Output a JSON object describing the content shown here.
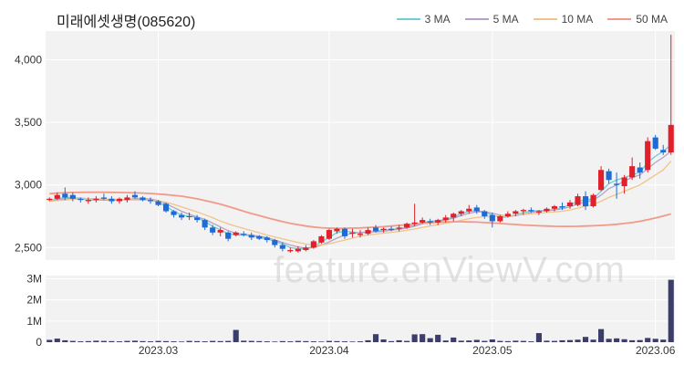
{
  "title": "미래에셋생명(085620)",
  "watermark": "feature.enViewV.com",
  "legend": [
    {
      "label": "3 MA",
      "color": "#6fcfd6"
    },
    {
      "label": "5 MA",
      "color": "#b7a1c9"
    },
    {
      "label": "10 MA",
      "color": "#f0c48a"
    },
    {
      "label": "50 MA",
      "color": "#f2998a"
    }
  ],
  "colors": {
    "up": "#e0202a",
    "down": "#1e6bd6",
    "volume": "#3d3d6b",
    "grid": "#e9e9e9",
    "panel": "#f2f2f2"
  },
  "chart_data": {
    "type": "candlestick",
    "price_axis": {
      "ticks": [
        2500,
        3000,
        3500,
        4000
      ],
      "tick_labels": [
        "2,500",
        "3,000",
        "3,500",
        "4,000"
      ],
      "ylim": [
        2400,
        4230
      ]
    },
    "volume_axis": {
      "ticks": [
        0,
        1000000,
        2000000,
        3000000
      ],
      "tick_labels": [
        "0",
        "1M",
        "2M",
        "3M"
      ],
      "ylim": [
        0,
        3150000
      ]
    },
    "x_labels": [
      {
        "label": "2023.03",
        "index": 14
      },
      {
        "label": "2023.04",
        "index": 36
      },
      {
        "label": "2023.05",
        "index": 57
      },
      {
        "label": "2023.06",
        "index": 78
      }
    ],
    "ohlc": [
      [
        2880,
        2900,
        2870,
        2890
      ],
      [
        2890,
        2940,
        2880,
        2920
      ],
      [
        2930,
        2980,
        2880,
        2900
      ],
      [
        2920,
        2940,
        2870,
        2890
      ],
      [
        2890,
        2900,
        2860,
        2880
      ],
      [
        2870,
        2900,
        2850,
        2880
      ],
      [
        2880,
        2910,
        2860,
        2890
      ],
      [
        2900,
        2930,
        2880,
        2890
      ],
      [
        2890,
        2910,
        2850,
        2870
      ],
      [
        2870,
        2900,
        2850,
        2890
      ],
      [
        2880,
        2920,
        2860,
        2900
      ],
      [
        2920,
        2950,
        2890,
        2900
      ],
      [
        2900,
        2910,
        2870,
        2880
      ],
      [
        2880,
        2900,
        2850,
        2870
      ],
      [
        2870,
        2880,
        2830,
        2840
      ],
      [
        2850,
        2860,
        2780,
        2790
      ],
      [
        2790,
        2800,
        2740,
        2760
      ],
      [
        2760,
        2780,
        2720,
        2740
      ],
      [
        2750,
        2780,
        2720,
        2750
      ],
      [
        2740,
        2760,
        2700,
        2720
      ],
      [
        2720,
        2730,
        2640,
        2660
      ],
      [
        2660,
        2680,
        2600,
        2620
      ],
      [
        2620,
        2660,
        2590,
        2640
      ],
      [
        2620,
        2630,
        2550,
        2570
      ],
      [
        2600,
        2630,
        2590,
        2620
      ],
      [
        2610,
        2630,
        2590,
        2600
      ],
      [
        2600,
        2620,
        2560,
        2580
      ],
      [
        2590,
        2600,
        2560,
        2570
      ],
      [
        2580,
        2590,
        2540,
        2560
      ],
      [
        2560,
        2570,
        2500,
        2520
      ],
      [
        2520,
        2540,
        2470,
        2490
      ],
      [
        2470,
        2500,
        2460,
        2480
      ],
      [
        2470,
        2510,
        2460,
        2490
      ],
      [
        2480,
        2520,
        2470,
        2500
      ],
      [
        2500,
        2560,
        2490,
        2550
      ],
      [
        2540,
        2600,
        2530,
        2590
      ],
      [
        2570,
        2650,
        2560,
        2640
      ],
      [
        2630,
        2660,
        2610,
        2650
      ],
      [
        2650,
        2660,
        2570,
        2590
      ],
      [
        2610,
        2650,
        2580,
        2620
      ],
      [
        2600,
        2640,
        2580,
        2610
      ],
      [
        2610,
        2660,
        2600,
        2640
      ],
      [
        2660,
        2680,
        2620,
        2630
      ],
      [
        2640,
        2660,
        2620,
        2650
      ],
      [
        2650,
        2670,
        2630,
        2640
      ],
      [
        2650,
        2680,
        2630,
        2660
      ],
      [
        2660,
        2700,
        2650,
        2690
      ],
      [
        2690,
        2850,
        2670,
        2700
      ],
      [
        2700,
        2740,
        2690,
        2720
      ],
      [
        2710,
        2730,
        2680,
        2700
      ],
      [
        2700,
        2730,
        2680,
        2720
      ],
      [
        2720,
        2760,
        2700,
        2740
      ],
      [
        2740,
        2780,
        2710,
        2770
      ],
      [
        2770,
        2800,
        2750,
        2790
      ],
      [
        2790,
        2840,
        2770,
        2810
      ],
      [
        2820,
        2840,
        2770,
        2790
      ],
      [
        2790,
        2800,
        2730,
        2750
      ],
      [
        2760,
        2780,
        2660,
        2710
      ],
      [
        2710,
        2760,
        2700,
        2750
      ],
      [
        2750,
        2790,
        2740,
        2770
      ],
      [
        2770,
        2800,
        2750,
        2790
      ],
      [
        2790,
        2810,
        2760,
        2800
      ],
      [
        2800,
        2820,
        2780,
        2790
      ],
      [
        2780,
        2800,
        2760,
        2790
      ],
      [
        2790,
        2820,
        2780,
        2810
      ],
      [
        2810,
        2840,
        2790,
        2830
      ],
      [
        2830,
        2860,
        2800,
        2820
      ],
      [
        2830,
        2880,
        2810,
        2860
      ],
      [
        2840,
        2930,
        2830,
        2910
      ],
      [
        2910,
        2950,
        2800,
        2830
      ],
      [
        2830,
        2930,
        2820,
        2920
      ],
      [
        2960,
        3150,
        2950,
        3120
      ],
      [
        3110,
        3130,
        3010,
        3040
      ],
      [
        3010,
        3100,
        2890,
        3000
      ],
      [
        2990,
        3080,
        2930,
        3060
      ],
      [
        3060,
        3220,
        3040,
        3150
      ],
      [
        3140,
        3180,
        3050,
        3100
      ],
      [
        3120,
        3380,
        3100,
        3350
      ],
      [
        3380,
        3400,
        3280,
        3290
      ],
      [
        3280,
        3320,
        3240,
        3260
      ],
      [
        3260,
        4200,
        3240,
        3480
      ]
    ],
    "volume": [
      110000,
      170000,
      90000,
      60000,
      40000,
      50000,
      70000,
      60000,
      50000,
      40000,
      60000,
      70000,
      50000,
      40000,
      60000,
      50000,
      40000,
      30000,
      60000,
      50000,
      40000,
      60000,
      50000,
      60000,
      580000,
      70000,
      60000,
      50000,
      40000,
      30000,
      50000,
      40000,
      60000,
      50000,
      40000,
      30000,
      60000,
      50000,
      40000,
      30000,
      40000,
      90000,
      380000,
      130000,
      50000,
      90000,
      60000,
      370000,
      380000,
      190000,
      350000,
      80000,
      220000,
      70000,
      80000,
      110000,
      60000,
      130000,
      60000,
      50000,
      70000,
      60000,
      40000,
      430000,
      70000,
      60000,
      90000,
      100000,
      120000,
      250000,
      120000,
      620000,
      160000,
      180000,
      140000,
      90000,
      100000,
      200000,
      160000,
      120000,
      2950000
    ],
    "moving_averages": [
      {
        "name": "3 MA",
        "values": [
          2870,
          2890,
          2900,
          2900,
          2890,
          2880,
          2880,
          2880,
          2880,
          2880,
          2885,
          2890,
          2895,
          2885,
          2860,
          2830,
          2790,
          2760,
          2750,
          2740,
          2710,
          2670,
          2640,
          2610,
          2600,
          2600,
          2595,
          2580,
          2570,
          2550,
          2530,
          2500,
          2490,
          2490,
          2510,
          2545,
          2580,
          2620,
          2630,
          2625,
          2615,
          2625,
          2630,
          2640,
          2645,
          2650,
          2665,
          2680,
          2700,
          2710,
          2715,
          2725,
          2745,
          2770,
          2790,
          2795,
          2785,
          2760,
          2740,
          2745,
          2760,
          2780,
          2790,
          2795,
          2795,
          2805,
          2820,
          2840,
          2870,
          2880,
          2890,
          2950,
          3010,
          3040,
          3060,
          3080,
          3100,
          3180,
          3230,
          3270,
          3320
        ]
      },
      {
        "name": "5 MA",
        "values": [
          2870,
          2880,
          2890,
          2895,
          2895,
          2890,
          2885,
          2880,
          2880,
          2880,
          2882,
          2885,
          2890,
          2888,
          2875,
          2850,
          2820,
          2790,
          2765,
          2745,
          2725,
          2695,
          2665,
          2635,
          2615,
          2605,
          2600,
          2590,
          2580,
          2560,
          2540,
          2520,
          2505,
          2495,
          2500,
          2520,
          2545,
          2575,
          2600,
          2615,
          2620,
          2625,
          2625,
          2630,
          2640,
          2645,
          2655,
          2670,
          2690,
          2705,
          2710,
          2720,
          2735,
          2755,
          2775,
          2785,
          2785,
          2775,
          2760,
          2750,
          2755,
          2765,
          2780,
          2790,
          2795,
          2800,
          2810,
          2825,
          2850,
          2865,
          2875,
          2920,
          2970,
          3000,
          3030,
          3060,
          3080,
          3130,
          3180,
          3220,
          3270
        ]
      },
      {
        "name": "10 MA",
        "values": [
          2870,
          2875,
          2880,
          2885,
          2890,
          2890,
          2890,
          2888,
          2886,
          2884,
          2882,
          2880,
          2880,
          2878,
          2872,
          2862,
          2845,
          2825,
          2805,
          2785,
          2762,
          2738,
          2712,
          2690,
          2670,
          2652,
          2635,
          2618,
          2600,
          2585,
          2570,
          2555,
          2540,
          2528,
          2522,
          2522,
          2530,
          2545,
          2560,
          2575,
          2590,
          2600,
          2608,
          2615,
          2622,
          2628,
          2638,
          2648,
          2660,
          2672,
          2683,
          2694,
          2705,
          2718,
          2730,
          2740,
          2748,
          2750,
          2752,
          2755,
          2760,
          2765,
          2770,
          2775,
          2780,
          2785,
          2790,
          2800,
          2815,
          2830,
          2845,
          2870,
          2900,
          2925,
          2950,
          2975,
          3000,
          3040,
          3080,
          3120,
          3190
        ]
      },
      {
        "name": "50 MA",
        "values": [
          2930,
          2935,
          2938,
          2940,
          2941,
          2942,
          2942,
          2942,
          2941,
          2940,
          2939,
          2937,
          2935,
          2932,
          2928,
          2923,
          2917,
          2910,
          2900,
          2889,
          2876,
          2862,
          2846,
          2828,
          2810,
          2790,
          2772,
          2755,
          2738,
          2722,
          2707,
          2693,
          2682,
          2672,
          2664,
          2658,
          2655,
          2653,
          2653,
          2655,
          2657,
          2660,
          2663,
          2667,
          2672,
          2677,
          2682,
          2688,
          2693,
          2698,
          2702,
          2705,
          2706,
          2706,
          2705,
          2703,
          2700,
          2696,
          2692,
          2688,
          2684,
          2680,
          2677,
          2674,
          2672,
          2670,
          2669,
          2669,
          2670,
          2672,
          2674,
          2677,
          2681,
          2686,
          2692,
          2700,
          2710,
          2722,
          2736,
          2752,
          2768
        ]
      }
    ]
  }
}
